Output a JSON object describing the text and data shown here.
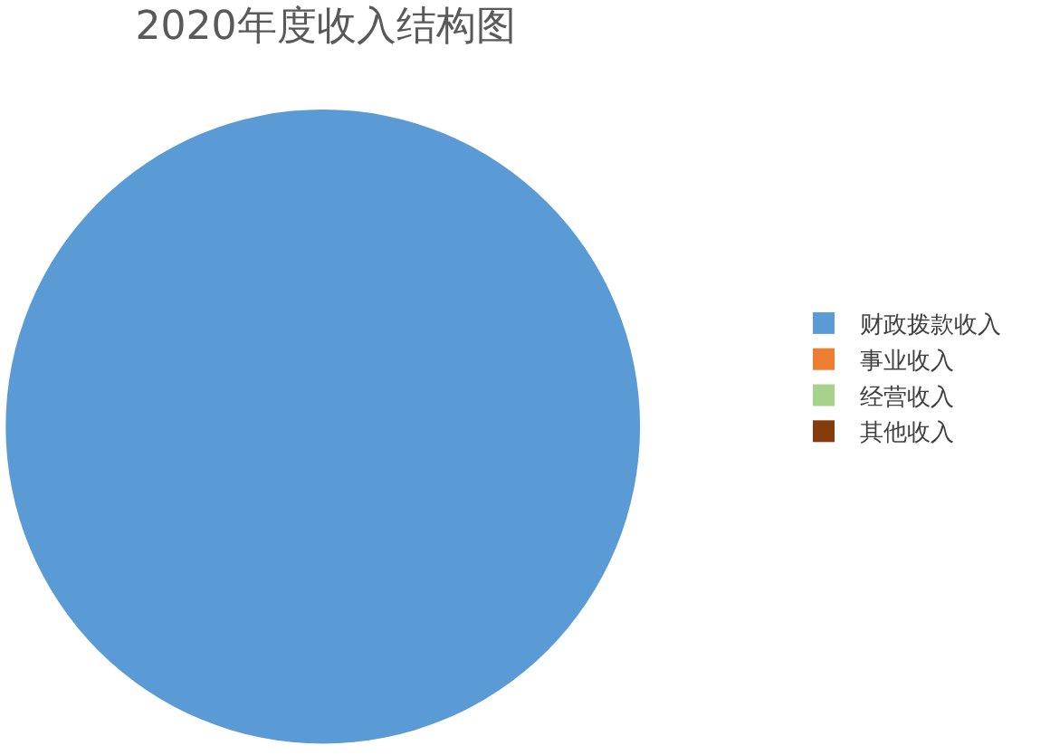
{
  "chart_data": {
    "type": "pie",
    "title": "2020年度收入结构图",
    "categories": [
      "财政拨款收入",
      "事业收入",
      "经营收入",
      "其他收入"
    ],
    "values": [
      100,
      0,
      0,
      0
    ],
    "colors": [
      "#5b9bd5",
      "#ed7d31",
      "#a9d18e",
      "#843c0c"
    ],
    "legend": "right"
  }
}
